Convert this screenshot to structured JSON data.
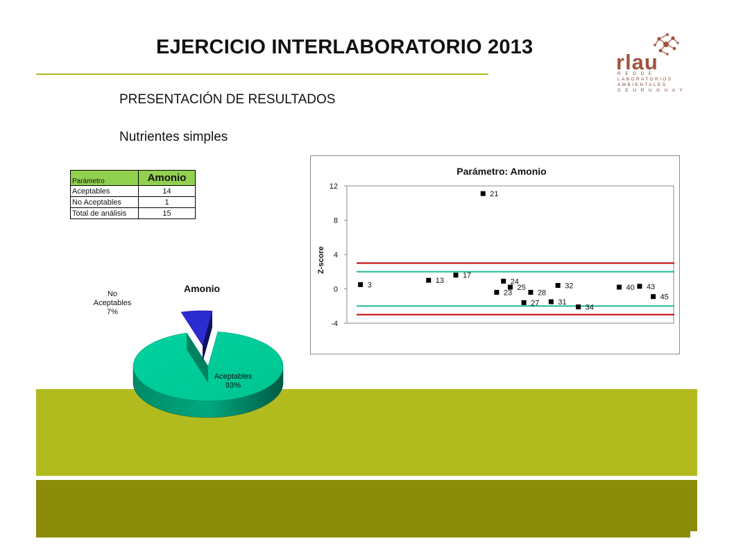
{
  "header": {
    "title": "EJERCICIO INTERLABORATORIO 2013",
    "logo_text": "rlau",
    "logo_sub": [
      "R E D  D E",
      "LABORATORIOS",
      "AMBIENTALES",
      "D E  U R U G U A Y"
    ]
  },
  "section": {
    "heading": "PRESENTACIÓN DE RESULTADOS",
    "subheading": "Nutrientes simples"
  },
  "colors": {
    "accent_line": "#b1bb1e",
    "band_top": "#b1bb1e",
    "band_bottom": "#8b8c08",
    "table_header": "#92d050",
    "pie_acceptable": "#00c997",
    "pie_not_acceptable": "#2b2bd0",
    "limit_red": "#c00000",
    "limit_teal": "#1fb89a",
    "logo": "#a0533c"
  },
  "table": {
    "header": {
      "label": "Parámetro",
      "value": "Amonio"
    },
    "rows": [
      {
        "label": "Aceptables",
        "value": "14"
      },
      {
        "label": "No Aceptables",
        "value": "1"
      },
      {
        "label": "Total de análisis",
        "value": "15"
      }
    ]
  },
  "chart_data": [
    {
      "type": "pie",
      "title": "Amonio",
      "slices": [
        {
          "label": "Aceptables",
          "percent_label": "93%",
          "value": 14
        },
        {
          "label": "No Aceptables",
          "percent_label": "7%",
          "value": 1
        }
      ],
      "style": "3d-exploded"
    },
    {
      "type": "scatter",
      "title": "Parámetro: Amonio",
      "xlabel": "",
      "ylabel": "Z-score",
      "ylim": [
        -4,
        12
      ],
      "yticks": [
        12,
        8,
        4,
        0,
        -4
      ],
      "grid": false,
      "points": [
        {
          "label": "3",
          "x": 1,
          "y": 0.5
        },
        {
          "label": "13",
          "x": 6,
          "y": 1.0
        },
        {
          "label": "17",
          "x": 8,
          "y": 1.6
        },
        {
          "label": "21",
          "x": 10,
          "y": 11.1
        },
        {
          "label": "23",
          "x": 11,
          "y": -0.4
        },
        {
          "label": "24",
          "x": 11.5,
          "y": 0.9
        },
        {
          "label": "25",
          "x": 12,
          "y": 0.2
        },
        {
          "label": "27",
          "x": 13,
          "y": -1.6
        },
        {
          "label": "28",
          "x": 13.5,
          "y": -0.4
        },
        {
          "label": "31",
          "x": 15,
          "y": -1.5
        },
        {
          "label": "32",
          "x": 15.5,
          "y": 0.4
        },
        {
          "label": "34",
          "x": 17,
          "y": -2.1
        },
        {
          "label": "40",
          "x": 20,
          "y": 0.2
        },
        {
          "label": "43",
          "x": 21.5,
          "y": 0.3
        },
        {
          "label": "45",
          "x": 22.5,
          "y": -0.9
        }
      ],
      "xlim": [
        0,
        24
      ],
      "limit_lines": [
        {
          "y": 3,
          "color": "#c00000"
        },
        {
          "y": 2,
          "color": "#1fb89a"
        },
        {
          "y": -2,
          "color": "#1fb89a"
        },
        {
          "y": -3,
          "color": "#c00000"
        }
      ]
    }
  ]
}
